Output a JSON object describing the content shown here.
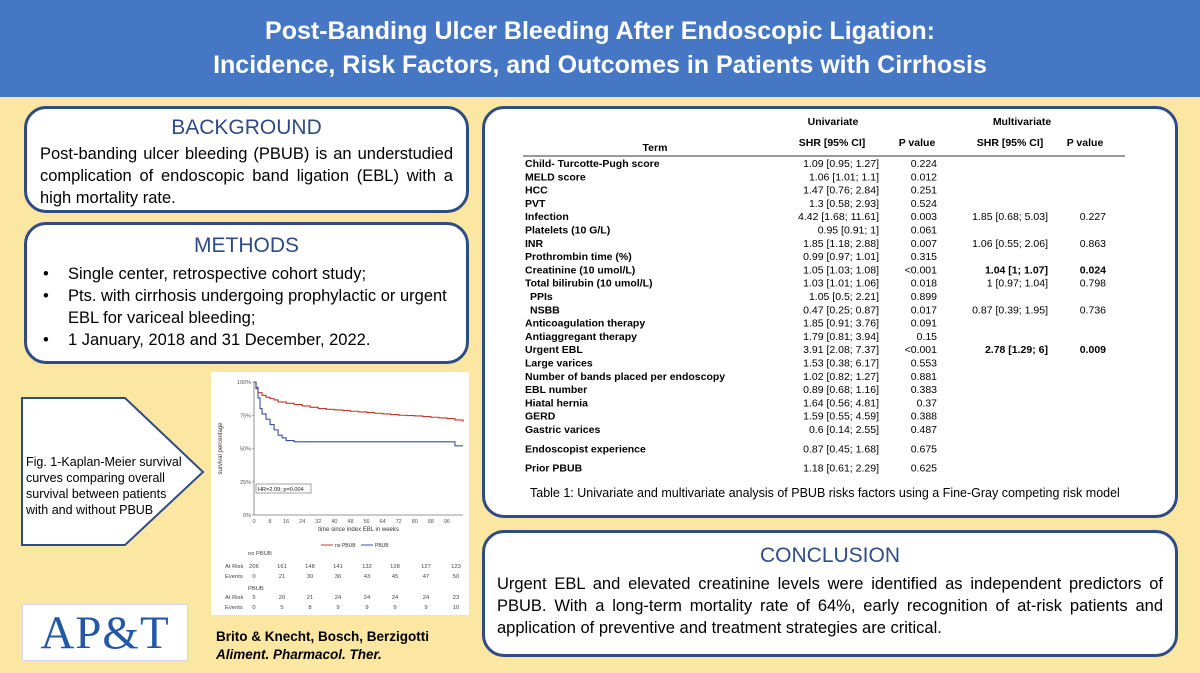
{
  "header": {
    "title_line1": "Post-Banding Ulcer Bleeding After Endoscopic Ligation:",
    "title_line2": "Incidence, Risk Factors, and Outcomes in Patients with Cirrhosis"
  },
  "background": {
    "title": "BACKGROUND",
    "text": "Post-banding ulcer bleeding (PBUB) is an understudied complication of endoscopic band ligation (EBL) with a high mortality rate."
  },
  "methods": {
    "title": "METHODS",
    "items": [
      "Single center, retrospective cohort study;",
      "Pts. with cirrhosis undergoing prophylactic or urgent EBL for variceal bleeding;",
      "1 January, 2018 and 31 December, 2022."
    ]
  },
  "table": {
    "group_headers": [
      "Univariate",
      "Multivariate"
    ],
    "columns": [
      "Term",
      "SHR [95% CI]",
      "P value",
      "SHR [95% CI]",
      "P value"
    ],
    "rows": [
      {
        "term": "Child- Turcotte-Pugh score",
        "uni_shr": "1.09 [0.95; 1.27]",
        "uni_p": "0.224",
        "multi_shr": "",
        "multi_p": ""
      },
      {
        "term": "MELD score",
        "uni_shr": "1.06 [1.01; 1.1]",
        "uni_p": "0.012",
        "multi_shr": "",
        "multi_p": ""
      },
      {
        "term": "HCC",
        "uni_shr": "1.47 [0.76; 2.84]",
        "uni_p": "0.251",
        "multi_shr": "",
        "multi_p": ""
      },
      {
        "term": "PVT",
        "uni_shr": "1.3 [0.58; 2.93]",
        "uni_p": "0.524",
        "multi_shr": "",
        "multi_p": ""
      },
      {
        "term": "Infection",
        "uni_shr": "4.42 [1.68; 11.61]",
        "uni_p": "0.003",
        "multi_shr": "1.85 [0.68; 5.03]",
        "multi_p": "0.227"
      },
      {
        "term": "Platelets (10 G/L)",
        "uni_shr": "0.95 [0.91; 1]",
        "uni_p": "0.061",
        "multi_shr": "",
        "multi_p": ""
      },
      {
        "term": "INR",
        "uni_shr": "1.85 [1.18; 2.88]",
        "uni_p": "0.007",
        "multi_shr": "1.06 [0.55; 2.06]",
        "multi_p": "0.863"
      },
      {
        "term": "Prothrombin time (%)",
        "uni_shr": "0.99 [0.97; 1.01]",
        "uni_p": "0.315",
        "multi_shr": "",
        "multi_p": ""
      },
      {
        "term": "Creatinine (10 umol/L)",
        "uni_shr": "1.05 [1.03; 1.08]",
        "uni_p": "<0.001",
        "multi_shr": "1.04 [1; 1.07]",
        "multi_p": "0.024"
      },
      {
        "term": "Total bilirubin (10 umol/L)",
        "uni_shr": "1.03 [1.01; 1.06]",
        "uni_p": "0.018",
        "multi_shr": "1 [0.97; 1.04]",
        "multi_p": "0.798"
      },
      {
        "term": "PPIs",
        "uni_shr": "1.05 [0.5; 2.21]",
        "uni_p": "0.899",
        "multi_shr": "",
        "multi_p": ""
      },
      {
        "term": "NSBB",
        "uni_shr": "0.47 [0.25; 0.87]",
        "uni_p": "0.017",
        "multi_shr": "0.87 [0.39; 1.95]",
        "multi_p": "0.736"
      },
      {
        "term": "Anticoagulation therapy",
        "uni_shr": "1.85 [0.91; 3.76]",
        "uni_p": "0.091",
        "multi_shr": "",
        "multi_p": ""
      },
      {
        "term": "Antiaggregant therapy",
        "uni_shr": "1.79 [0.81; 3.94]",
        "uni_p": "0.15",
        "multi_shr": "",
        "multi_p": ""
      },
      {
        "term": "Urgent EBL",
        "uni_shr": "3.91 [2.08; 7.37]",
        "uni_p": "<0.001",
        "multi_shr": "2.78 [1.29; 6]",
        "multi_p": "0.009"
      },
      {
        "term": "Large varices",
        "uni_shr": "1.53 [0.38; 6.17]",
        "uni_p": "0.553",
        "multi_shr": "",
        "multi_p": ""
      },
      {
        "term": "Number of bands placed per endoscopy",
        "uni_shr": "1.02 [0.82; 1.27]",
        "uni_p": "0.881",
        "multi_shr": "",
        "multi_p": ""
      },
      {
        "term": "EBL number",
        "uni_shr": "0.89 [0.68; 1.16]",
        "uni_p": "0.383",
        "multi_shr": "",
        "multi_p": ""
      },
      {
        "term": "Hiatal hernia",
        "uni_shr": "1.64 [0.56; 4.81]",
        "uni_p": "0.37",
        "multi_shr": "",
        "multi_p": ""
      },
      {
        "term": "GERD",
        "uni_shr": "1.59 [0.55; 4.59]",
        "uni_p": "0.388",
        "multi_shr": "",
        "multi_p": ""
      },
      {
        "term": "Gastric varices",
        "uni_shr": "0.6 [0.14; 2.55]",
        "uni_p": "0.487",
        "multi_shr": "",
        "multi_p": ""
      },
      {
        "term": "Endoscopist experience",
        "uni_shr": "0.87 [0.45; 1.68]",
        "uni_p": "0.675",
        "multi_shr": "",
        "multi_p": ""
      },
      {
        "term": "Prior PBUB",
        "uni_shr": "1.18 [0.61; 2.29]",
        "uni_p": "0.625",
        "multi_shr": "",
        "multi_p": ""
      }
    ],
    "caption": "Table 1: Univariate and multivariate analysis of PBUB risks factors using a Fine-Gray competing risk model"
  },
  "figure": {
    "caption": "Fig. 1-Kaplan-Meier survival curves comparing overall survival between patients with and without PBUB"
  },
  "chart_data": {
    "type": "line",
    "title": "",
    "xlabel": "time since index EBL in weeks",
    "ylabel": "survival percentage",
    "xlim": [
      0,
      104
    ],
    "ylim": [
      0,
      100
    ],
    "x_ticks": [
      "0",
      "8",
      "16",
      "24",
      "32",
      "40",
      "48",
      "56",
      "64",
      "72",
      "80",
      "88",
      "96"
    ],
    "y_ticks": [
      "0%",
      "25%",
      "50%",
      "75%",
      "100%"
    ],
    "annotation": "HR=2.09; p=0.004",
    "legend": [
      "no PBUB",
      "PBUB"
    ],
    "series": [
      {
        "name": "no PBUB",
        "color": "#c0392b",
        "x": [
          0,
          1,
          2,
          4,
          6,
          8,
          10,
          12,
          16,
          20,
          24,
          28,
          32,
          36,
          40,
          44,
          48,
          52,
          56,
          60,
          64,
          68,
          72,
          76,
          80,
          84,
          88,
          92,
          96,
          100,
          104
        ],
        "y": [
          100,
          95,
          92,
          90,
          88.5,
          87.5,
          86.5,
          85,
          84,
          83,
          82,
          81,
          80,
          79.5,
          79,
          78.5,
          78,
          77.5,
          77,
          76.5,
          76,
          75.5,
          75,
          74.8,
          74.5,
          74,
          73.5,
          73,
          72.5,
          71.5,
          70
        ]
      },
      {
        "name": "PBUB",
        "color": "#3a4fa6",
        "x": [
          0,
          1,
          2,
          3,
          4,
          6,
          8,
          10,
          12,
          14,
          16,
          20,
          24,
          40,
          56,
          72,
          88,
          96,
          100,
          104
        ],
        "y": [
          100,
          96,
          88,
          80,
          76,
          72,
          68,
          64,
          60,
          58,
          56,
          55,
          55,
          55,
          55,
          55,
          55,
          55,
          52,
          52
        ]
      }
    ],
    "risk_table": {
      "header": "no PBUB",
      "header2": "PBUB",
      "row_labels": [
        "At Risk",
        "Events"
      ],
      "no_pbub_at_risk": [
        "206",
        "161",
        "148",
        "141",
        "132",
        "128",
        "127",
        "123"
      ],
      "no_pbub_events": [
        "0",
        "21",
        "30",
        "36",
        "43",
        "45",
        "47",
        "50"
      ],
      "pbub_at_risk": [
        "5",
        "20",
        "21",
        "24",
        "24",
        "24",
        "24",
        "23"
      ],
      "pbub_events": [
        "0",
        "5",
        "8",
        "9",
        "9",
        "9",
        "9",
        "10"
      ]
    }
  },
  "conclusion": {
    "title": "CONCLUSION",
    "text": "Urgent EBL and elevated creatinine levels were identified as independent predictors of PBUB. With a long-term mortality rate of 64%, early recognition of at-risk patients and application of preventive and treatment strategies are critical."
  },
  "logo": {
    "text": "AP&T"
  },
  "authors": {
    "names": "Brito & Knecht, Bosch, Berzigotti",
    "journal": "Aliment. Pharmacol. Ther."
  }
}
